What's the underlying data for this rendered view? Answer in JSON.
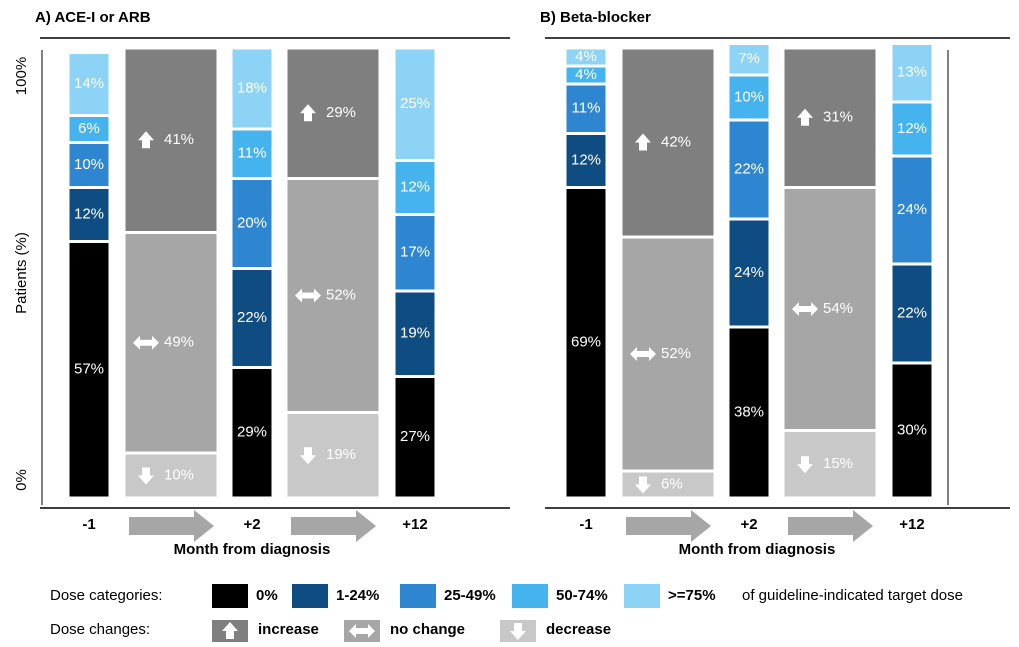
{
  "chart_data": [
    {
      "type": "stacked-transition-bar",
      "title": "A) ACE-I or ARB",
      "ylabel": "Patients (%)",
      "xlabel": "Month from diagnosis",
      "categories": [
        "-1",
        "+2",
        "+12"
      ],
      "ylim": [
        0,
        100
      ],
      "yticks": [
        {
          "value": 0,
          "label": "0%"
        },
        {
          "value": 100,
          "label": "100%"
        }
      ],
      "series": [
        {
          "values": [
            57,
            29,
            27
          ],
          "value_labels": [
            "57%",
            "29%",
            "27%"
          ]
        },
        {
          "values": [
            12,
            22,
            19
          ],
          "value_labels": [
            "12%",
            "22%",
            "19%"
          ]
        },
        {
          "values": [
            10,
            20,
            17
          ],
          "value_labels": [
            "10%",
            "20%",
            "17%"
          ]
        },
        {
          "values": [
            6,
            11,
            12
          ],
          "value_labels": [
            "6%",
            "11%",
            "12%"
          ]
        },
        {
          "values": [
            14,
            18,
            25
          ],
          "value_labels": [
            "14%",
            "18%",
            "25%"
          ]
        }
      ],
      "changes": [
        {
          "values": [
            41,
            29
          ],
          "value_labels": [
            "41%",
            "29%"
          ]
        },
        {
          "values": [
            49,
            52
          ],
          "value_labels": [
            "49%",
            "52%"
          ]
        },
        {
          "values": [
            10,
            19
          ],
          "value_labels": [
            "10%",
            "19%"
          ]
        }
      ]
    },
    {
      "type": "stacked-transition-bar",
      "title": "B) Beta-blocker",
      "xlabel": "Month from diagnosis",
      "categories": [
        "-1",
        "+2",
        "+12"
      ],
      "ylim": [
        0,
        100
      ],
      "series": [
        {
          "values": [
            69,
            38,
            30
          ],
          "value_labels": [
            "69%",
            "38%",
            "30%"
          ]
        },
        {
          "values": [
            12,
            24,
            22
          ],
          "value_labels": [
            "12%",
            "24%",
            "22%"
          ]
        },
        {
          "values": [
            11,
            22,
            24
          ],
          "value_labels": [
            "11%",
            "22%",
            "24%"
          ]
        },
        {
          "values": [
            4,
            10,
            12
          ],
          "value_labels": [
            "4%",
            "10%",
            "12%"
          ]
        },
        {
          "values": [
            4,
            7,
            13
          ],
          "value_labels": [
            "4%",
            "7%",
            "13%"
          ]
        }
      ],
      "changes": [
        {
          "values": [
            42,
            31
          ],
          "value_labels": [
            "42%",
            "31%"
          ]
        },
        {
          "values": [
            52,
            54
          ],
          "value_labels": [
            "52%",
            "54%"
          ]
        },
        {
          "values": [
            6,
            15
          ],
          "value_labels": [
            "6%",
            "15%"
          ]
        }
      ]
    }
  ],
  "legend": {
    "dose_title": "Dose categories:",
    "dose_suffix": "of guideline-indicated target dose",
    "change_title": "Dose changes:",
    "doses": [
      {
        "name": "0%",
        "color": "#000000"
      },
      {
        "name": "1-24%",
        "color": "#0f4c81"
      },
      {
        "name": "25-49%",
        "color": "#2e86d0"
      },
      {
        "name": "50-74%",
        "color": "#45b3ee"
      },
      {
        "name": ">=75%",
        "color": "#8dd3f5"
      }
    ],
    "changes": [
      {
        "name": "increase",
        "color": "#7f7f7f",
        "icon": "up"
      },
      {
        "name": "no change",
        "color": "#a6a6a6",
        "icon": "both"
      },
      {
        "name": "decrease",
        "color": "#c8c8c8",
        "icon": "down"
      }
    ]
  }
}
